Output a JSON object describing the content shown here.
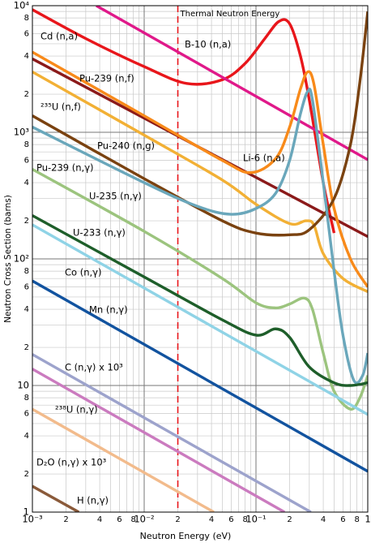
{
  "chart_data": {
    "type": "line",
    "log_x": true,
    "log_y": true,
    "grid": true,
    "xlabel": "Neutron Energy (eV)",
    "ylabel": "Neutron Cross Section (barns)",
    "annotation": {
      "text": "Thermal Neutron Energy",
      "x": 0.02,
      "color": "#e8161b"
    },
    "xlim": [
      0.001,
      1
    ],
    "ylim": [
      1,
      10000
    ],
    "xticks": [
      {
        "value": 0.001,
        "label": "10⁻³"
      },
      {
        "value": 0.002,
        "label": "2"
      },
      {
        "value": 0.004,
        "label": "4"
      },
      {
        "value": 0.006,
        "label": "6"
      },
      {
        "value": 0.008,
        "label": "8"
      },
      {
        "value": 0.01,
        "label": "10⁻²"
      },
      {
        "value": 0.02,
        "label": "2"
      },
      {
        "value": 0.04,
        "label": "4"
      },
      {
        "value": 0.06,
        "label": "6"
      },
      {
        "value": 0.08,
        "label": "8"
      },
      {
        "value": 0.1,
        "label": "10⁻¹"
      },
      {
        "value": 0.2,
        "label": "2"
      },
      {
        "value": 0.4,
        "label": "4"
      },
      {
        "value": 0.6,
        "label": "6"
      },
      {
        "value": 0.8,
        "label": "8"
      },
      1
    ],
    "xminor": [
      0.003,
      0.005,
      0.007,
      0.009,
      0.03,
      0.05,
      0.07,
      0.09,
      0.3,
      0.5,
      0.7,
      0.9
    ],
    "yticks": [
      {
        "value": 10000,
        "label": "10⁴"
      },
      {
        "value": 8000,
        "label": "8"
      },
      {
        "value": 6000,
        "label": "6"
      },
      {
        "value": 4000,
        "label": "4"
      },
      {
        "value": 2000,
        "label": "2"
      },
      {
        "value": 1000,
        "label": "10³"
      },
      {
        "value": 800,
        "label": "8"
      },
      {
        "value": 600,
        "label": "6"
      },
      {
        "value": 400,
        "label": "4"
      },
      {
        "value": 200,
        "label": "2"
      },
      {
        "value": 100,
        "label": "10²"
      },
      {
        "value": 80,
        "label": "8"
      },
      {
        "value": 60,
        "label": "6"
      },
      {
        "value": 40,
        "label": "4"
      },
      {
        "value": 20,
        "label": "2"
      },
      10,
      8,
      6,
      4,
      2,
      1
    ],
    "yminor": [
      9000,
      7000,
      5000,
      3000,
      900,
      700,
      500,
      300,
      90,
      70,
      50,
      30,
      9,
      7,
      5,
      3
    ],
    "series": [
      {
        "name": "Cd (n,a)",
        "color": "#e8161b",
        "x": [
          0.001,
          0.003,
          0.01,
          0.024,
          0.05,
          0.08,
          0.12,
          0.16,
          0.2,
          0.25,
          0.3,
          0.4,
          0.5
        ],
        "values": [
          9300,
          5500,
          3300,
          2430,
          2600,
          3500,
          5500,
          7500,
          7200,
          4000,
          1800,
          400,
          160
        ]
      },
      {
        "name": "B-10 (n,a)",
        "color": "#e0198a",
        "x": [
          0.00373,
          1
        ],
        "values": [
          10000,
          607
        ]
      },
      {
        "name": "Pu-239 (n,f)",
        "color": "#8b1a1a",
        "x": [
          0.001,
          1
        ],
        "values": [
          3800,
          150
        ]
      },
      {
        "name": "²³⁵U (n,f)",
        "color": "#f2b035",
        "x": [
          0.001,
          0.01,
          0.05,
          0.1,
          0.2,
          0.28,
          0.33,
          0.4,
          0.6,
          1
        ],
        "values": [
          3000,
          950,
          420,
          270,
          190,
          200,
          185,
          110,
          70,
          55
        ]
      },
      {
        "name": "Li-6 (n,a)",
        "color": "#f88a1a",
        "x": [
          0.001,
          0.01,
          0.05,
          0.09,
          0.15,
          0.2,
          0.25,
          0.29,
          0.33,
          0.4,
          0.5,
          0.7,
          1
        ],
        "values": [
          4300,
          1350,
          600,
          480,
          620,
          1100,
          2200,
          3000,
          2400,
          800,
          250,
          100,
          60
        ]
      },
      {
        "name": "Pu-240 (n,g)",
        "color": "#7a4210",
        "x": [
          0.001,
          0.01,
          0.05,
          0.1,
          0.2,
          0.3,
          0.5,
          0.7,
          0.85,
          1
        ],
        "values": [
          1350,
          430,
          200,
          160,
          155,
          170,
          300,
          800,
          2500,
          9000
        ]
      },
      {
        "name": "Pu-239 (n,γ)",
        "color": "#6aa7bb",
        "x": [
          0.001,
          0.01,
          0.03,
          0.06,
          0.1,
          0.15,
          0.2,
          0.25,
          0.29,
          0.32,
          0.4,
          0.5,
          0.6,
          0.75,
          0.9,
          1
        ],
        "values": [
          1100,
          400,
          260,
          225,
          250,
          330,
          600,
          1400,
          2100,
          1800,
          400,
          80,
          25,
          11,
          12,
          18
        ]
      },
      {
        "name": "U-235 (n,γ)",
        "color": "#9cc47e",
        "x": [
          0.001,
          0.01,
          0.05,
          0.1,
          0.15,
          0.2,
          0.27,
          0.32,
          0.4,
          0.5,
          0.7,
          0.85,
          1
        ],
        "values": [
          510,
          165,
          70,
          45,
          41,
          44,
          49,
          40,
          18,
          9,
          6.5,
          8,
          12
        ]
      },
      {
        "name": "U-233 (n,γ)",
        "color": "#1e5e2a",
        "x": [
          0.001,
          0.01,
          0.05,
          0.1,
          0.15,
          0.2,
          0.3,
          0.5,
          0.7,
          1
        ],
        "values": [
          220,
          72,
          33,
          25,
          28,
          24,
          14,
          10.5,
          10,
          10.5
        ]
      },
      {
        "name": "Co (n,γ)",
        "color": "#8fd3e6",
        "x": [
          0.001,
          1
        ],
        "values": [
          186,
          5.9
        ]
      },
      {
        "name": "Mn (n,γ)",
        "color": "#12539f",
        "x": [
          0.001,
          1
        ],
        "values": [
          67,
          2.1
        ]
      },
      {
        "name": "C (n,γ) x 10³",
        "color": "#9da3cc",
        "x": [
          0.001,
          0.31
        ],
        "values": [
          17.6,
          1
        ]
      },
      {
        "name": "²³⁸U (n,γ)",
        "color": "#cb7bbf",
        "x": [
          0.001,
          0.18
        ],
        "values": [
          13.5,
          1
        ]
      },
      {
        "name": "D₂O (n,γ) x 10³",
        "color": "#f2bb8c",
        "x": [
          0.001,
          0.042
        ],
        "values": [
          6.5,
          1
        ]
      },
      {
        "name": "H (n,γ)",
        "color": "#8a5a3a",
        "x": [
          0.001,
          0.0026
        ],
        "values": [
          1.6,
          1
        ]
      }
    ]
  }
}
